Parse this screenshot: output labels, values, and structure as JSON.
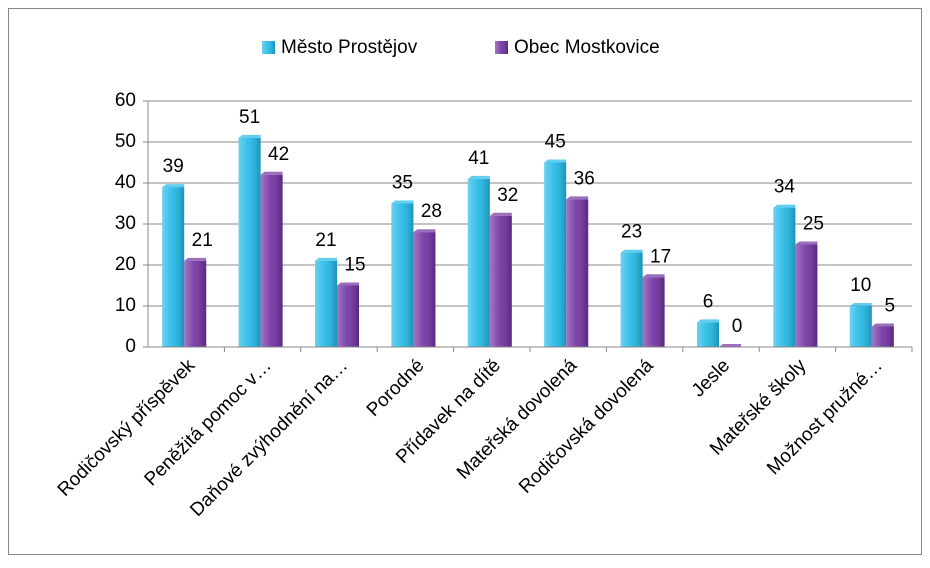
{
  "chart_data": {
    "type": "bar",
    "categories": [
      "Rodičovský příspěvek",
      "Peněžitá pomoc v…",
      "Daňové zvýhodnění na…",
      "Porodné",
      "Přídavek na dítě",
      "Mateřská dovolená",
      "Rodičovská dovolená",
      "Jesle",
      "Mateřské školy",
      "Možnost pružné…"
    ],
    "series": [
      {
        "name": "Město Prostějov",
        "color": "#1fb8e6",
        "values": [
          39,
          51,
          21,
          35,
          41,
          45,
          23,
          6,
          34,
          10
        ]
      },
      {
        "name": "Obec Mostkovice",
        "color": "#7030a0",
        "values": [
          21,
          42,
          15,
          28,
          32,
          36,
          17,
          0,
          25,
          5
        ]
      }
    ],
    "ylim": [
      0,
      60
    ],
    "yticks": [
      0,
      10,
      20,
      30,
      40,
      50,
      60
    ],
    "grid": true,
    "legend": "top"
  }
}
